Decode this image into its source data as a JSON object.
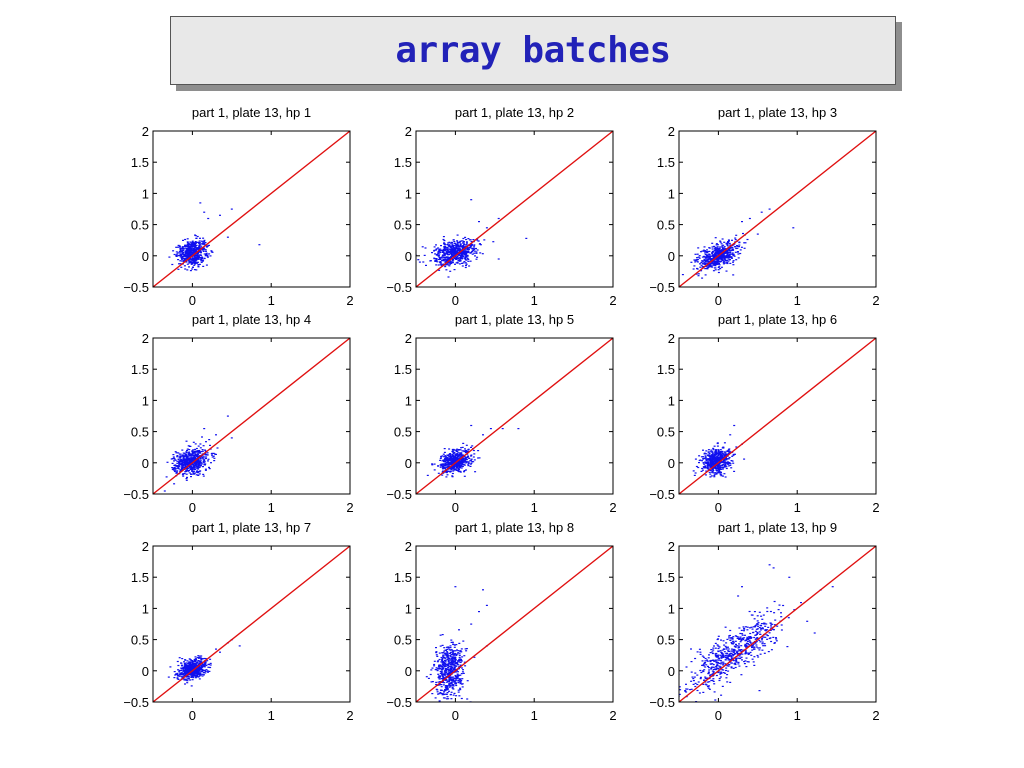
{
  "slide": {
    "title": "array batches",
    "colors": {
      "title": "#2222b8",
      "points": "#1010ee",
      "diagonal": "#e01010",
      "axes": "#000000"
    }
  },
  "chart_data": [
    {
      "type": "scatter",
      "title": "part 1, plate 13, hp 1",
      "xlim": [
        -0.5,
        2
      ],
      "ylim": [
        -0.5,
        2
      ],
      "xticks": [
        "0",
        "1",
        "2"
      ],
      "yticks": [
        "−0.5",
        "0",
        "0.5",
        "1",
        "1.5",
        "2"
      ],
      "reference_line": {
        "x": [
          -0.5,
          2
        ],
        "y": [
          -0.5,
          2
        ]
      },
      "cloud": {
        "cx": 0.0,
        "cy": 0.05,
        "sx": 0.09,
        "sy": 0.11,
        "rho": 0.2,
        "n": 520
      },
      "outliers": [
        [
          0.1,
          0.85
        ],
        [
          0.15,
          0.7
        ],
        [
          0.2,
          0.6
        ],
        [
          0.35,
          0.65
        ],
        [
          0.5,
          0.75
        ],
        [
          0.85,
          0.18
        ],
        [
          0.45,
          0.3
        ]
      ]
    },
    {
      "type": "scatter",
      "title": "part 1, plate 13, hp 2",
      "xlim": [
        -0.5,
        2
      ],
      "ylim": [
        -0.5,
        2
      ],
      "xticks": [
        "0",
        "1",
        "2"
      ],
      "yticks": [
        "−0.5",
        "0",
        "0.5",
        "1",
        "1.5",
        "2"
      ],
      "reference_line": {
        "x": [
          -0.5,
          2
        ],
        "y": [
          -0.5,
          2
        ]
      },
      "cloud": {
        "cx": 0.0,
        "cy": 0.05,
        "sx": 0.14,
        "sy": 0.1,
        "rho": 0.35,
        "n": 560
      },
      "outliers": [
        [
          0.2,
          0.9
        ],
        [
          0.3,
          0.55
        ],
        [
          0.55,
          0.6
        ],
        [
          0.9,
          0.28
        ],
        [
          0.55,
          -0.05
        ],
        [
          -0.45,
          -0.1
        ],
        [
          0.4,
          0.45
        ]
      ]
    },
    {
      "type": "scatter",
      "title": "part 1, plate 13, hp 3",
      "xlim": [
        -0.5,
        2
      ],
      "ylim": [
        -0.5,
        2
      ],
      "xticks": [
        "0",
        "1",
        "2"
      ],
      "yticks": [
        "−0.5",
        "0",
        "0.5",
        "1",
        "1.5",
        "2"
      ],
      "reference_line": {
        "x": [
          -0.5,
          2
        ],
        "y": [
          -0.5,
          2
        ]
      },
      "cloud": {
        "cx": 0.0,
        "cy": 0.0,
        "sx": 0.13,
        "sy": 0.11,
        "rho": 0.55,
        "n": 560
      },
      "outliers": [
        [
          0.4,
          0.6
        ],
        [
          0.55,
          0.7
        ],
        [
          0.65,
          0.75
        ],
        [
          0.95,
          0.45
        ],
        [
          -0.45,
          -0.3
        ],
        [
          0.3,
          0.55
        ],
        [
          0.5,
          0.35
        ]
      ]
    },
    {
      "type": "scatter",
      "title": "part 1, plate 13, hp 4",
      "xlim": [
        -0.5,
        2
      ],
      "ylim": [
        -0.5,
        2
      ],
      "xticks": [
        "0",
        "1",
        "2"
      ],
      "yticks": [
        "−0.5",
        "0",
        "0.5",
        "1",
        "1.5",
        "2"
      ],
      "reference_line": {
        "x": [
          -0.5,
          2
        ],
        "y": [
          -0.5,
          2
        ]
      },
      "cloud": {
        "cx": -0.02,
        "cy": 0.02,
        "sx": 0.11,
        "sy": 0.11,
        "rho": 0.25,
        "n": 560
      },
      "outliers": [
        [
          0.45,
          0.75
        ],
        [
          0.5,
          0.4
        ],
        [
          0.15,
          0.55
        ],
        [
          -0.35,
          -0.45
        ],
        [
          0.3,
          0.45
        ]
      ]
    },
    {
      "type": "scatter",
      "title": "part 1, plate 13, hp 5",
      "xlim": [
        -0.5,
        2
      ],
      "ylim": [
        -0.5,
        2
      ],
      "xticks": [
        "0",
        "1",
        "2"
      ],
      "yticks": [
        "−0.5",
        "0",
        "0.5",
        "1",
        "1.5",
        "2"
      ],
      "reference_line": {
        "x": [
          -0.5,
          2
        ],
        "y": [
          -0.5,
          2
        ]
      },
      "cloud": {
        "cx": 0.0,
        "cy": 0.03,
        "sx": 0.1,
        "sy": 0.09,
        "rho": 0.35,
        "n": 540
      },
      "outliers": [
        [
          0.45,
          0.55
        ],
        [
          0.6,
          0.55
        ],
        [
          0.8,
          0.55
        ],
        [
          0.2,
          0.6
        ],
        [
          0.35,
          0.45
        ],
        [
          -0.35,
          -0.2
        ]
      ]
    },
    {
      "type": "scatter",
      "title": "part 1, plate 13, hp 6",
      "xlim": [
        -0.5,
        2
      ],
      "ylim": [
        -0.5,
        2
      ],
      "xticks": [
        "0",
        "1",
        "2"
      ],
      "yticks": [
        "−0.5",
        "0",
        "0.5",
        "1",
        "1.5",
        "2"
      ],
      "reference_line": {
        "x": [
          -0.5,
          2
        ],
        "y": [
          -0.5,
          2
        ]
      },
      "cloud": {
        "cx": -0.02,
        "cy": 0.03,
        "sx": 0.09,
        "sy": 0.1,
        "rho": 0.2,
        "n": 520
      },
      "outliers": [
        [
          0.2,
          0.6
        ],
        [
          0.15,
          0.45
        ],
        [
          0.3,
          0.3
        ],
        [
          -0.3,
          -0.2
        ]
      ]
    },
    {
      "type": "scatter",
      "title": "part 1, plate 13, hp 7",
      "xlim": [
        -0.5,
        2
      ],
      "ylim": [
        -0.5,
        2
      ],
      "xticks": [
        "0",
        "1",
        "2"
      ],
      "yticks": [
        "−0.5",
        "0",
        "0.5",
        "1",
        "1.5",
        "2"
      ],
      "reference_line": {
        "x": [
          -0.5,
          2
        ],
        "y": [
          -0.5,
          2
        ]
      },
      "cloud": {
        "cx": 0.0,
        "cy": 0.03,
        "sx": 0.09,
        "sy": 0.08,
        "rho": 0.35,
        "n": 540
      },
      "outliers": [
        [
          0.45,
          0.45
        ],
        [
          0.6,
          0.4
        ],
        [
          0.35,
          0.3
        ],
        [
          0.5,
          0.5
        ],
        [
          -0.3,
          -0.1
        ],
        [
          0.3,
          0.35
        ]
      ]
    },
    {
      "type": "scatter",
      "title": "part 1, plate 13, hp 8",
      "xlim": [
        -0.5,
        2
      ],
      "ylim": [
        -0.5,
        2
      ],
      "xticks": [
        "0",
        "1",
        "2"
      ],
      "yticks": [
        "−0.5",
        "0",
        "0.5",
        "1",
        "1.5",
        "2"
      ],
      "reference_line": {
        "x": [
          -0.5,
          2
        ],
        "y": [
          -0.5,
          2
        ]
      },
      "cloud": {
        "cx": -0.07,
        "cy": 0.0,
        "sx": 0.09,
        "sy": 0.21,
        "rho": 0.1,
        "n": 540
      },
      "outliers": [
        [
          0.0,
          1.35
        ],
        [
          0.35,
          1.3
        ],
        [
          0.4,
          1.05
        ],
        [
          0.3,
          0.95
        ],
        [
          0.2,
          0.75
        ],
        [
          0.15,
          -0.45
        ],
        [
          -0.2,
          -0.48
        ],
        [
          0.4,
          0.4
        ]
      ]
    },
    {
      "type": "scatter",
      "title": "part 1, plate 13, hp 9",
      "xlim": [
        -0.5,
        2
      ],
      "ylim": [
        -0.5,
        2
      ],
      "xticks": [
        "0",
        "1",
        "2"
      ],
      "yticks": [
        "−0.5",
        "0",
        "0.5",
        "1",
        "1.5",
        "2"
      ],
      "reference_line": {
        "x": [
          -0.5,
          2
        ],
        "y": [
          -0.5,
          2
        ]
      },
      "cloud": {
        "cx": 0.2,
        "cy": 0.3,
        "sx": 0.3,
        "sy": 0.3,
        "rho": 0.82,
        "n": 620
      },
      "outliers": [
        [
          0.65,
          1.7
        ],
        [
          0.7,
          1.65
        ],
        [
          0.9,
          1.5
        ],
        [
          1.3,
          1.3
        ],
        [
          1.45,
          1.35
        ],
        [
          0.3,
          1.35
        ],
        [
          0.25,
          1.2
        ],
        [
          -0.3,
          -0.1
        ]
      ]
    }
  ]
}
